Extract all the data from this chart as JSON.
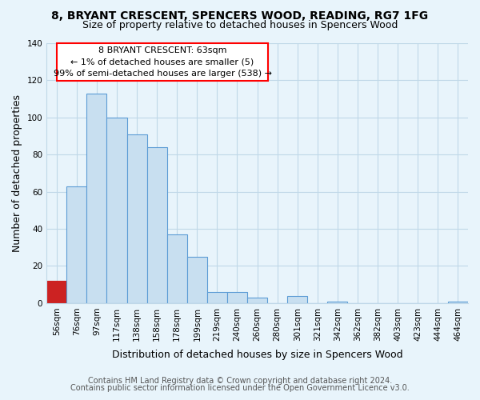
{
  "title": "8, BRYANT CRESCENT, SPENCERS WOOD, READING, RG7 1FG",
  "subtitle": "Size of property relative to detached houses in Spencers Wood",
  "xlabel": "Distribution of detached houses by size in Spencers Wood",
  "ylabel": "Number of detached properties",
  "bar_labels": [
    "56sqm",
    "76sqm",
    "97sqm",
    "117sqm",
    "138sqm",
    "158sqm",
    "178sqm",
    "199sqm",
    "219sqm",
    "240sqm",
    "260sqm",
    "280sqm",
    "301sqm",
    "321sqm",
    "342sqm",
    "362sqm",
    "382sqm",
    "403sqm",
    "423sqm",
    "444sqm",
    "464sqm"
  ],
  "bar_values": [
    12,
    63,
    113,
    100,
    91,
    84,
    37,
    25,
    6,
    6,
    3,
    0,
    4,
    0,
    1,
    0,
    0,
    0,
    0,
    0,
    1
  ],
  "bar_color_normal": "#c8dff0",
  "bar_color_highlight": "#cc2222",
  "bar_edge_normal": "#5b9bd5",
  "bar_edge_highlight": "#cc2222",
  "highlight_index": 0,
  "ylim": [
    0,
    140
  ],
  "yticks": [
    0,
    20,
    40,
    60,
    80,
    100,
    120,
    140
  ],
  "annotation_line1": "8 BRYANT CRESCENT: 63sqm",
  "annotation_line2": "← 1% of detached houses are smaller (5)",
  "annotation_line3": "99% of semi-detached houses are larger (538) →",
  "footer_line1": "Contains HM Land Registry data © Crown copyright and database right 2024.",
  "footer_line2": "Contains public sector information licensed under the Open Government Licence v3.0.",
  "background_color": "#e8f4fb",
  "plot_bg_color": "#e8f4fb",
  "grid_color": "#c0d8e8",
  "title_fontsize": 10,
  "subtitle_fontsize": 9,
  "axis_label_fontsize": 9,
  "tick_fontsize": 7.5,
  "annotation_fontsize": 8,
  "footer_fontsize": 7
}
